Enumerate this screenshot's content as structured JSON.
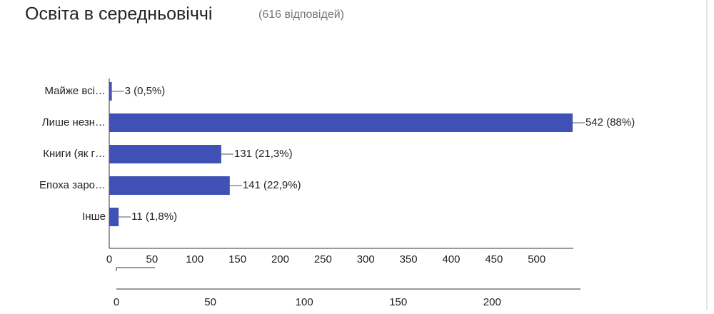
{
  "chart_data": {
    "type": "bar",
    "orientation": "horizontal",
    "title": "Освіта в середньовіччі",
    "subtitle": "(616 відповідей)",
    "categories": [
      "Майже всі…",
      "Лише незн…",
      "Книги (як г…",
      "Епоха заро…",
      "Інше"
    ],
    "values": [
      3,
      542,
      131,
      141,
      11
    ],
    "value_labels": [
      "3 (0,5%)",
      "542 (88%)",
      "131 (21,3%)",
      "141 (22,9%)",
      "11 (1,8%)"
    ],
    "color": "#3f51b5",
    "xlim": [
      0,
      542
    ],
    "xticks": [
      0,
      50,
      100,
      150,
      200,
      250,
      300,
      350,
      400,
      450,
      500
    ],
    "x2lim": [
      0,
      247
    ],
    "x2ticks": [
      0,
      50,
      100,
      150,
      200
    ]
  }
}
